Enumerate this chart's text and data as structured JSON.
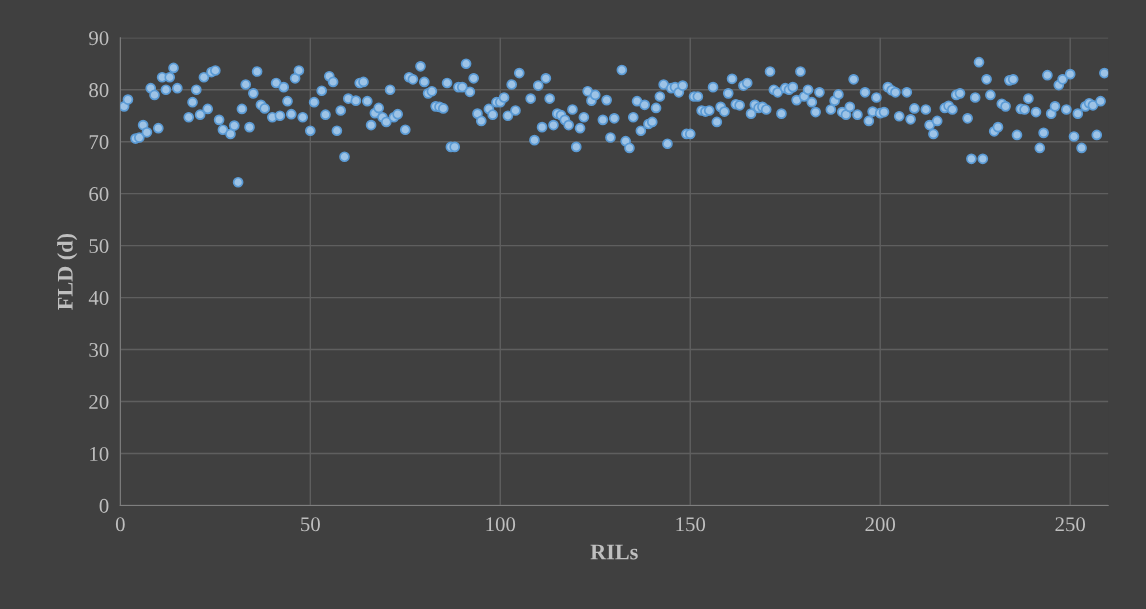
{
  "chart_data": {
    "type": "scatter",
    "xlabel": "RILs",
    "ylabel": "FLD (d)",
    "xlim": [
      0,
      260
    ],
    "ylim": [
      0,
      90
    ],
    "xticks": [
      0,
      50,
      100,
      150,
      200,
      250
    ],
    "yticks": [
      0,
      10,
      20,
      30,
      40,
      50,
      60,
      70,
      80,
      90
    ],
    "grid": true,
    "marker": "circle",
    "series": [
      {
        "color": "#9dc3e6",
        "x": [
          1,
          2,
          4,
          5,
          6,
          7,
          8,
          9,
          10,
          11,
          12,
          13,
          14,
          15,
          18,
          19,
          20,
          21,
          22,
          23,
          24,
          25,
          26,
          27,
          29,
          30,
          31,
          32,
          33,
          34,
          35,
          36,
          37,
          38,
          40,
          41,
          42,
          43,
          44,
          45,
          46,
          47,
          48,
          50,
          51,
          53,
          54,
          55,
          56,
          57,
          58,
          59,
          60,
          62,
          63,
          64,
          65,
          66,
          67,
          68,
          69,
          70,
          71,
          72,
          73,
          75,
          76,
          77,
          79,
          80,
          81,
          82,
          83,
          84,
          85,
          86,
          87,
          88,
          89,
          90,
          91,
          92,
          93,
          94,
          95,
          97,
          98,
          99,
          100,
          101,
          102,
          103,
          104,
          105,
          108,
          109,
          110,
          111,
          112,
          113,
          114,
          115,
          116,
          117,
          118,
          119,
          120,
          121,
          122,
          123,
          124,
          125,
          127,
          128,
          129,
          130,
          132,
          133,
          134,
          135,
          136,
          137,
          138,
          139,
          140,
          141,
          142,
          143,
          144,
          145,
          146,
          147,
          148,
          149,
          150,
          151,
          152,
          153,
          154,
          155,
          156,
          157,
          158,
          159,
          160,
          161,
          162,
          163,
          164,
          165,
          166,
          167,
          168,
          169,
          170,
          171,
          172,
          173,
          174,
          175,
          176,
          177,
          178,
          179,
          180,
          181,
          182,
          183,
          184,
          187,
          188,
          189,
          190,
          191,
          192,
          193,
          194,
          196,
          197,
          198,
          199,
          200,
          201,
          202,
          203,
          204,
          205,
          207,
          208,
          209,
          212,
          213,
          214,
          215,
          217,
          218,
          219,
          220,
          221,
          223,
          224,
          225,
          226,
          227,
          228,
          229,
          230,
          231,
          232,
          233,
          234,
          235,
          236,
          237,
          238,
          239,
          241,
          242,
          243,
          244,
          245,
          246,
          247,
          248,
          249,
          250,
          251,
          252,
          253,
          254,
          255,
          256,
          257,
          258,
          259
        ],
        "values": [
          76.8,
          78.1,
          70.6,
          70.8,
          73.2,
          71.8,
          80.3,
          79.0,
          72.6,
          82.4,
          80.0,
          82.4,
          84.2,
          80.3,
          74.7,
          77.6,
          80.0,
          75.2,
          82.4,
          76.3,
          83.4,
          83.7,
          74.2,
          72.3,
          71.5,
          73.1,
          62.2,
          76.3,
          81.0,
          72.8,
          79.3,
          83.5,
          77.1,
          76.4,
          74.7,
          81.3,
          75.0,
          80.5,
          77.8,
          75.3,
          82.2,
          83.7,
          74.7,
          72.1,
          77.6,
          79.8,
          75.2,
          82.6,
          81.5,
          72.1,
          76.0,
          67.1,
          78.3,
          77.9,
          81.3,
          81.5,
          77.8,
          73.2,
          75.5,
          76.5,
          74.7,
          73.8,
          80.0,
          74.7,
          75.3,
          72.3,
          82.4,
          82.0,
          84.5,
          81.5,
          79.3,
          79.7,
          76.8,
          76.7,
          76.4,
          81.3,
          69.0,
          69.0,
          80.5,
          80.5,
          85.0,
          79.6,
          82.2,
          75.4,
          74.0,
          76.3,
          75.2,
          77.6,
          77.6,
          78.5,
          75.0,
          81.0,
          76.0,
          83.2,
          78.3,
          70.3,
          80.8,
          72.8,
          82.2,
          78.3,
          73.2,
          75.4,
          75.1,
          74.2,
          73.2,
          76.2,
          69.0,
          72.6,
          74.7,
          79.7,
          77.9,
          79.0,
          74.2,
          78.0,
          70.8,
          74.5,
          83.8,
          70.1,
          68.8,
          74.7,
          77.8,
          72.1,
          77.1,
          73.4,
          73.8,
          76.5,
          78.7,
          81.0,
          69.6,
          80.3,
          80.5,
          79.5,
          80.8,
          71.5,
          71.5,
          78.7,
          78.7,
          76.0,
          75.8,
          76.0,
          80.5,
          73.8,
          76.7,
          75.8,
          79.3,
          82.1,
          77.2,
          77.0,
          80.8,
          81.3,
          75.4,
          77.1,
          76.5,
          76.7,
          76.2,
          83.5,
          80.0,
          79.5,
          75.4,
          80.3,
          80.0,
          80.5,
          78.0,
          83.5,
          78.7,
          80.0,
          77.6,
          75.7,
          79.5,
          76.2,
          77.9,
          79.1,
          75.7,
          75.2,
          76.7,
          82.0,
          75.2,
          79.5,
          74.0,
          75.8,
          78.5,
          75.5,
          75.7,
          80.5,
          79.9,
          79.5,
          74.9,
          79.5,
          74.3,
          76.4,
          76.2,
          73.2,
          71.5,
          74.0,
          76.5,
          76.9,
          76.2,
          79.0,
          79.3,
          74.5,
          66.7,
          78.5,
          85.3,
          66.7,
          82.0,
          79.0,
          72.0,
          72.8,
          77.3,
          76.8,
          81.8,
          82.0,
          71.3,
          76.3,
          76.2,
          78.3,
          75.7,
          68.8,
          71.7,
          82.8,
          75.4,
          76.8,
          80.9,
          82.0,
          76.2,
          83.0,
          71.0,
          75.4,
          68.8,
          76.8,
          77.4,
          77.0,
          71.3,
          77.8,
          83.2
        ]
      }
    ]
  }
}
